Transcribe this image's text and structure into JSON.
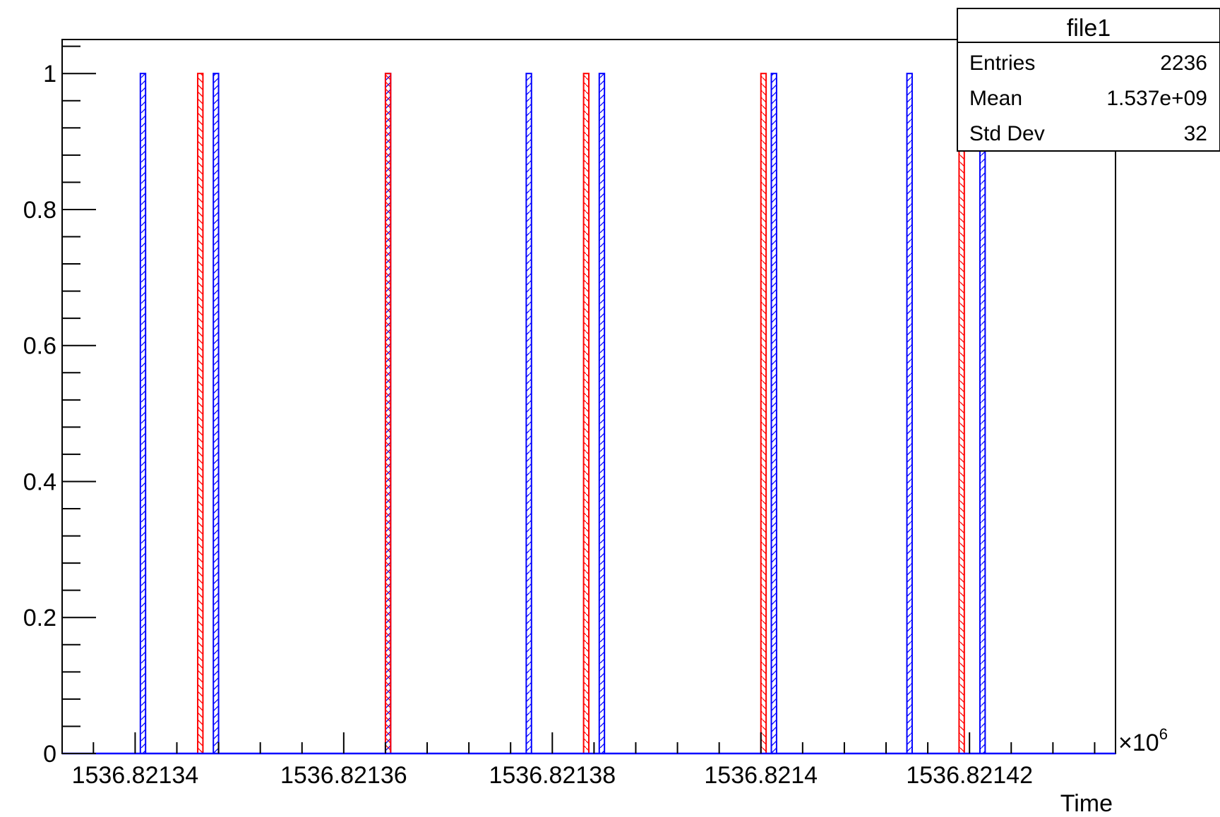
{
  "chart_data": {
    "type": "bar",
    "title": "",
    "xlabel": "Time",
    "ylabel": "",
    "x_multiplier": "×10",
    "x_multiplier_exp": "6",
    "xlim": [
      1536.821333,
      1536.821434
    ],
    "ylim": [
      0,
      1.05
    ],
    "x_ticks": [
      1536.82134,
      1536.82136,
      1536.82138,
      1536.8214,
      1536.82142
    ],
    "x_tick_labels": [
      "1536.82134",
      "1536.82136",
      "1536.82138",
      "1536.8214",
      "1536.82142"
    ],
    "y_ticks": [
      0,
      0.2,
      0.4,
      0.6,
      0.8,
      1
    ],
    "y_tick_labels": [
      "0",
      "0.2",
      "0.4",
      "0.6",
      "0.8",
      "1"
    ],
    "grid": false,
    "series": [
      {
        "color": "#0000ff",
        "bins": [
          {
            "x": 1536.82134075,
            "value": 1
          },
          {
            "x": 1536.82134775,
            "value": 1
          },
          {
            "x": 1536.82136425,
            "value": 1
          },
          {
            "x": 1536.82137775,
            "value": 1
          },
          {
            "x": 1536.82138475,
            "value": 1
          },
          {
            "x": 1536.82140125,
            "value": 1
          },
          {
            "x": 1536.82141425,
            "value": 1
          },
          {
            "x": 1536.82142125,
            "value": 1
          }
        ]
      },
      {
        "color": "#ff0000",
        "bins": [
          {
            "x": 1536.82134625,
            "value": 1
          },
          {
            "x": 1536.82136425,
            "value": 1
          },
          {
            "x": 1536.82138325,
            "value": 1
          },
          {
            "x": 1536.82140025,
            "value": 1
          },
          {
            "x": 1536.82141925,
            "value": 1
          }
        ]
      }
    ]
  },
  "stats_box": {
    "title": "file1",
    "rows": [
      {
        "label": "Entries",
        "value": "2236"
      },
      {
        "label": "Mean",
        "value": "1.537e+09"
      },
      {
        "label": "Std Dev",
        "value": "32"
      }
    ]
  }
}
